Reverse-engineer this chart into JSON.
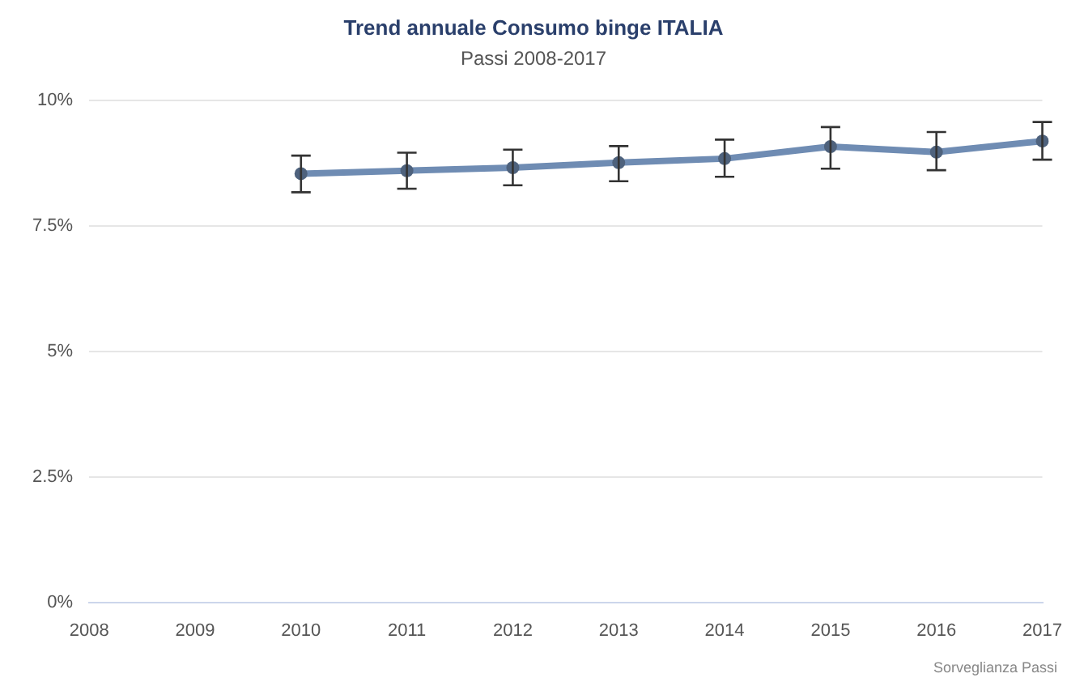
{
  "chart_data": {
    "type": "line",
    "title": "Trend annuale Consumo binge ITALIA",
    "subtitle": "Passi 2008-2017",
    "categories": [
      "2008",
      "2009",
      "2010",
      "2011",
      "2012",
      "2013",
      "2014",
      "2015",
      "2016",
      "2017"
    ],
    "series": [
      {
        "color": "#6f8cb3",
        "values": [
          null,
          null,
          8.54,
          8.6,
          8.66,
          8.76,
          8.84,
          9.08,
          8.97,
          9.19
        ],
        "errors": [
          null,
          null,
          [
            8.17,
            8.9
          ],
          [
            8.24,
            8.96
          ],
          [
            8.31,
            9.02
          ],
          [
            8.39,
            9.09
          ],
          [
            8.48,
            9.22
          ],
          [
            8.64,
            9.47
          ],
          [
            8.61,
            9.37
          ],
          [
            8.82,
            9.57
          ]
        ]
      }
    ],
    "ylim": [
      0,
      10
    ],
    "yticks": [
      {
        "value": 0,
        "label": "0%"
      },
      {
        "value": 2.5,
        "label": "2.5%"
      },
      {
        "value": 5,
        "label": "5%"
      },
      {
        "value": 7.5,
        "label": "7.5%"
      },
      {
        "value": 10,
        "label": "10%"
      }
    ],
    "grid": "y",
    "legend": false,
    "marker": "circle",
    "line_style": "solid",
    "annotations": [
      "Sorveglianza Passi"
    ]
  }
}
